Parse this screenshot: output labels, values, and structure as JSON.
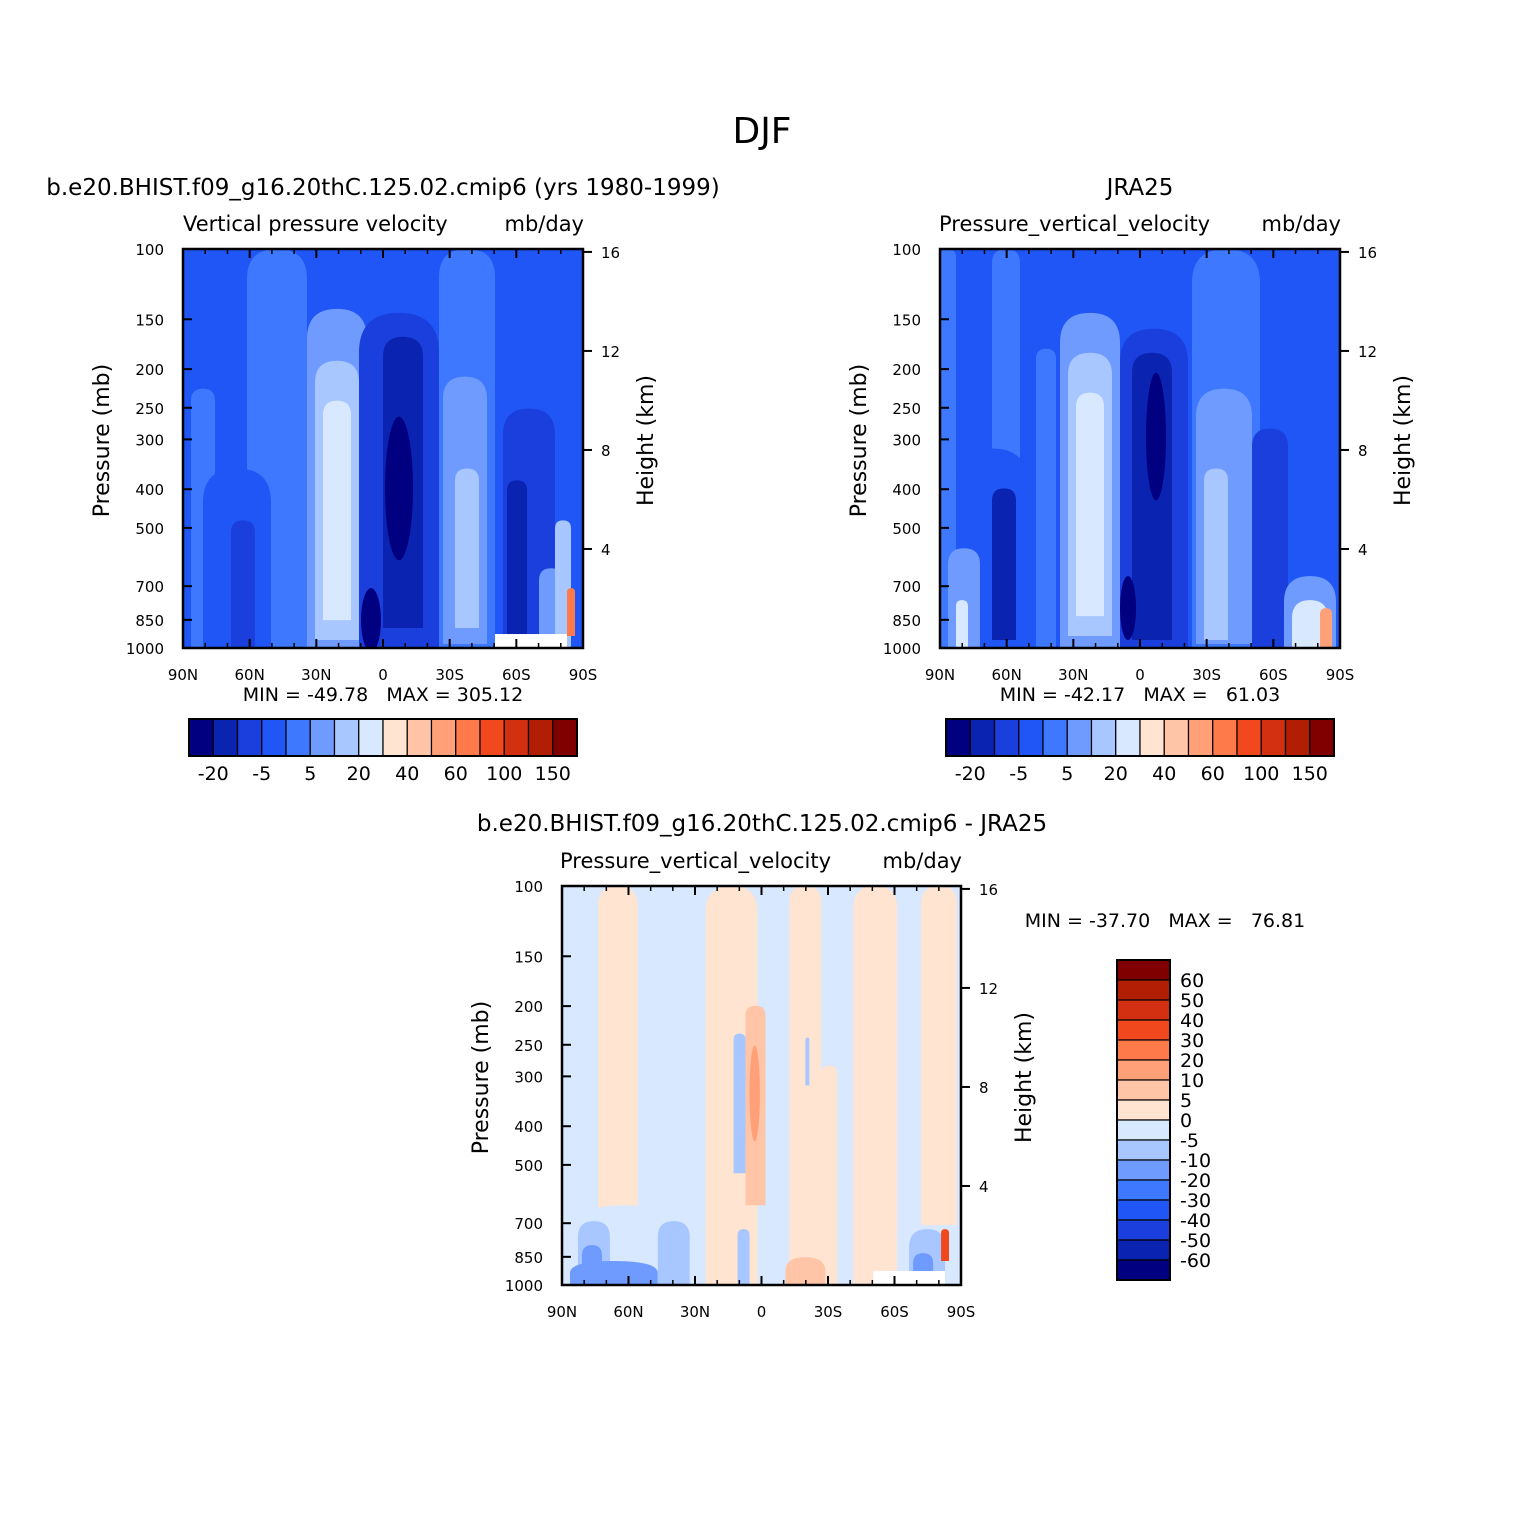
{
  "figure_title": "DJF",
  "colors": {
    "model_obs_levels": [
      "#000080",
      "#0a23b0",
      "#1a3fdc",
      "#1f56f5",
      "#3d78ff",
      "#6f9bff",
      "#a8c6ff",
      "#d7e8ff",
      "#ffe4d1",
      "#ffc5a6",
      "#ffa078",
      "#ff7a4a",
      "#f2481e",
      "#d23010",
      "#b21e04",
      "#800000"
    ],
    "diff_levels": [
      "#800000",
      "#b21e04",
      "#d23010",
      "#f2481e",
      "#ff7a4a",
      "#ffa078",
      "#ffc5a6",
      "#ffe4d1",
      "#d7e8ff",
      "#a8c6ff",
      "#6f9bff",
      "#3d78ff",
      "#1f56f5",
      "#1a3fdc",
      "#0a23b0",
      "#000080"
    ]
  },
  "panels": [
    {
      "id": "model",
      "top_label": "b.e20.BHIST.f09_g16.20thC.125.02.cmip6 (yrs 1980-1999)",
      "subtitle_left": "Vertical pressure velocity",
      "subtitle_right": "mb/day",
      "stats": "MIN = -49.78   MAX = 305.12"
    },
    {
      "id": "obs",
      "top_label": "JRA25",
      "subtitle_left": "Pressure_vertical_velocity",
      "subtitle_right": "mb/day",
      "stats": "MIN = -42.17   MAX =   61.03"
    },
    {
      "id": "diff",
      "top_label": "b.e20.BHIST.f09_g16.20thC.125.02.cmip6 - JRA25",
      "subtitle_left": "Pressure_vertical_velocity",
      "subtitle_right": "mb/day",
      "stats": "MIN = -37.70   MAX =   76.81"
    }
  ],
  "axes": {
    "ylabel": "Pressure (mb)",
    "ylabel_right": "Height (km)",
    "pressure_ticks": [
      "100",
      "150",
      "200",
      "250",
      "300",
      "400",
      "500",
      "700",
      "850",
      "1000"
    ],
    "height_ticks": [
      "16",
      "12",
      "8",
      "4"
    ],
    "lat_ticks": [
      "90N",
      "60N",
      "30N",
      "0",
      "30S",
      "60S",
      "90S"
    ]
  },
  "colorbars": {
    "model_obs_labels": [
      "-20",
      "-5",
      "5",
      "20",
      "40",
      "60",
      "100",
      "150"
    ],
    "diff_labels": [
      "60",
      "50",
      "40",
      "30",
      "20",
      "10",
      "5",
      "0",
      "-5",
      "-10",
      "-20",
      "-30",
      "-40",
      "-50",
      "-60"
    ]
  },
  "chart_data": [
    {
      "type": "heatmap",
      "title": "b.e20.BHIST.f09_g16.20thC.125.02.cmip6 (yrs 1980-1999)",
      "xlabel": "",
      "ylabel": "Pressure (mb)",
      "x": [
        "90N",
        "60N",
        "30N",
        "0",
        "30S",
        "60S",
        "90S"
      ],
      "xlim": [
        90,
        -90
      ],
      "ylim": [
        1000,
        100
      ],
      "y_scale": "log",
      "units": "mb/day",
      "min": -49.78,
      "max": 305.12
    },
    {
      "type": "heatmap",
      "title": "JRA25",
      "xlabel": "",
      "ylabel": "Pressure (mb)",
      "x": [
        "90N",
        "60N",
        "30N",
        "0",
        "30S",
        "60S",
        "90S"
      ],
      "xlim": [
        90,
        -90
      ],
      "ylim": [
        1000,
        100
      ],
      "y_scale": "log",
      "units": "mb/day",
      "min": -42.17,
      "max": 61.03
    },
    {
      "type": "heatmap",
      "title": "b.e20.BHIST.f09_g16.20thC.125.02.cmip6 - JRA25",
      "xlabel": "",
      "ylabel": "Pressure (mb)",
      "x": [
        "90N",
        "60N",
        "30N",
        "0",
        "30S",
        "60S",
        "90S"
      ],
      "xlim": [
        90,
        -90
      ],
      "ylim": [
        1000,
        100
      ],
      "y_scale": "log",
      "units": "mb/day",
      "min": -37.7,
      "max": 76.81
    }
  ]
}
